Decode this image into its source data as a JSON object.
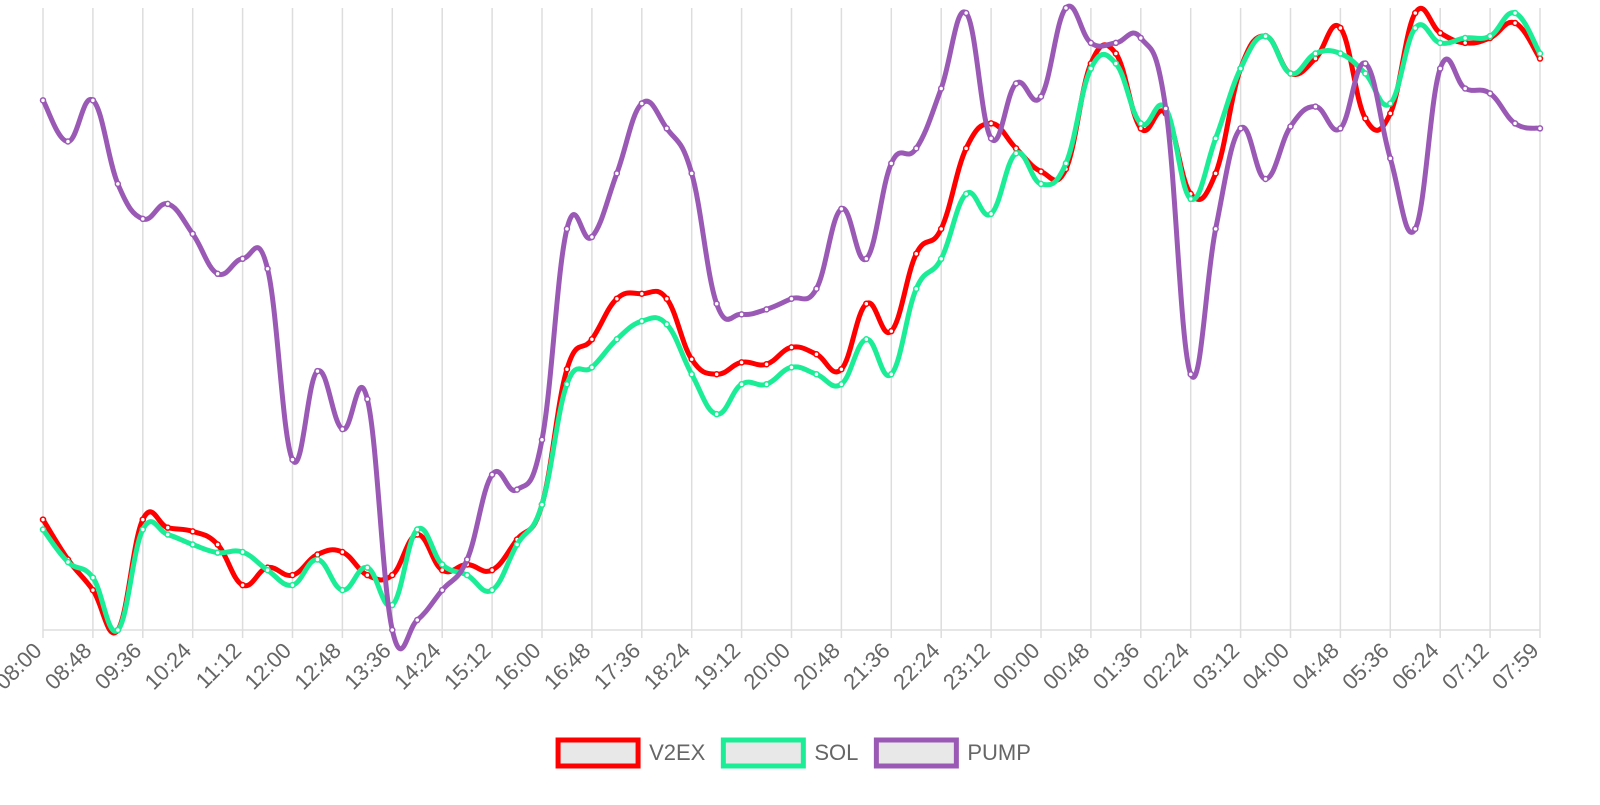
{
  "chart_data": {
    "type": "line",
    "categories": [
      "08:00",
      null,
      "08:48",
      null,
      "09:36",
      null,
      "10:24",
      null,
      "11:12",
      null,
      "12:00",
      null,
      "12:48",
      null,
      "13:36",
      null,
      "14:24",
      null,
      "15:12",
      null,
      "16:00",
      null,
      "16:48",
      null,
      "17:36",
      null,
      "18:24",
      null,
      "19:12",
      null,
      "20:00",
      null,
      "20:48",
      null,
      "21:36",
      null,
      "22:24",
      null,
      "23:12",
      null,
      "00:00",
      null,
      "00:48",
      null,
      "01:36",
      null,
      "02:24",
      null,
      "03:12",
      null,
      "04:00",
      null,
      "04:48",
      null,
      "05:36",
      null,
      "06:24",
      null,
      "07:12",
      null,
      "07:59"
    ],
    "series": [
      {
        "name": "V2EX",
        "color": "#ff0000",
        "values": [
          17.7,
          11.3,
          6.4,
          0,
          17.7,
          16.4,
          15.8,
          13.7,
          7.2,
          10.0,
          8.8,
          12.1,
          12.5,
          8.8,
          8.8,
          15.3,
          9.6,
          10.5,
          9.6,
          14.5,
          20.1,
          41.8,
          46.6,
          53.1,
          53.9,
          53.1,
          43.4,
          41.0,
          42.9,
          42.6,
          45.3,
          44.2,
          41.8,
          52.3,
          47.9,
          60.3,
          64.3,
          77.2,
          81.2,
          77.2,
          73.5,
          73.9,
          90.8,
          92.4,
          80.4,
          82.8,
          69.9,
          73.2,
          90.0,
          95.2,
          89.2,
          91.6,
          96.5,
          82.0,
          82.8,
          98.9,
          95.7,
          94.1,
          94.9,
          97.3,
          91.6
        ]
      },
      {
        "name": "SOL",
        "color": "#1aed96",
        "values": [
          16.1,
          10.9,
          8.4,
          0,
          16.1,
          15.3,
          13.7,
          12.4,
          12.5,
          9.6,
          7.2,
          11.3,
          6.4,
          10.0,
          4.0,
          16.1,
          10.5,
          8.8,
          6.4,
          13.7,
          20.1,
          39.4,
          42.1,
          46.6,
          49.5,
          49.0,
          41.0,
          34.6,
          39.4,
          39.4,
          42.1,
          41.0,
          39.4,
          46.6,
          41.0,
          54.7,
          59.5,
          69.9,
          66.7,
          76.4,
          71.5,
          74.8,
          90.0,
          90.8,
          81.2,
          83.6,
          69.1,
          78.8,
          90.0,
          95.2,
          89.2,
          92.4,
          92.4,
          89.2,
          84.4,
          96.5,
          94.1,
          94.9,
          95.2,
          98.9,
          92.4
        ]
      },
      {
        "name": "PUMP",
        "color": "#9b59b6",
        "values": [
          84.9,
          78.3,
          84.9,
          71.5,
          65.9,
          68.3,
          63.5,
          57.1,
          59.5,
          57.9,
          27.3,
          41.5,
          32.2,
          37.0,
          0,
          1.6,
          6.4,
          11.3,
          24.9,
          22.5,
          30.5,
          64.3,
          63.0,
          73.2,
          84.4,
          80.4,
          73.2,
          52.3,
          50.6,
          51.4,
          53.1,
          54.7,
          67.5,
          59.5,
          74.8,
          77.2,
          86.8,
          98.9,
          78.8,
          87.6,
          85.5,
          99.7,
          94.1,
          94.1,
          94.9,
          83.6,
          41.0,
          64.3,
          80.4,
          72.3,
          80.7,
          83.9,
          80.4,
          90.8,
          75.6,
          64.3,
          90.0,
          86.8,
          86.0,
          81.2,
          80.4
        ]
      }
    ],
    "grid": true,
    "legend": "bottom"
  }
}
